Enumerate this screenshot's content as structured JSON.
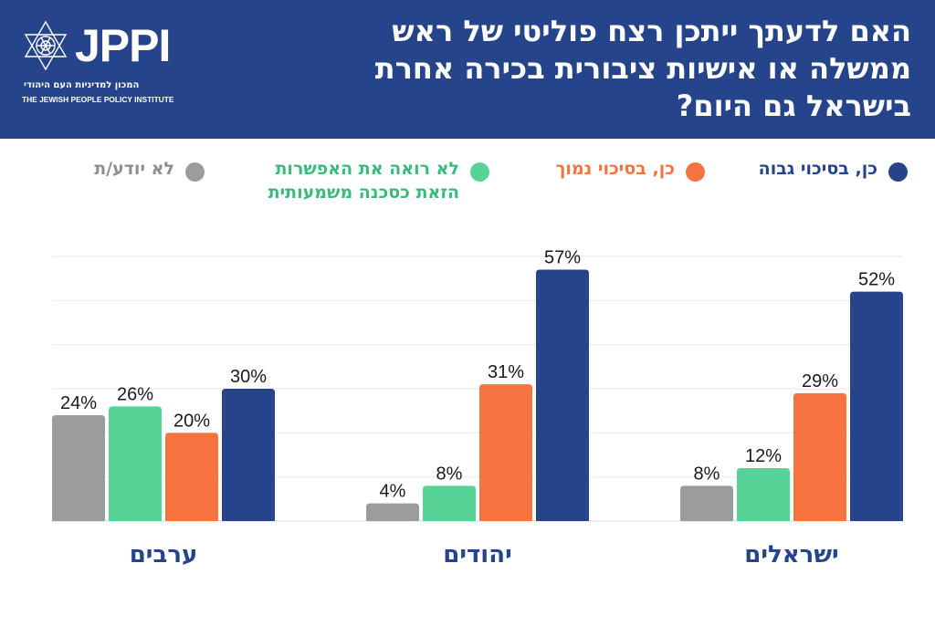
{
  "header": {
    "logo_mark": "JPPI",
    "logo_hebrew": "המכון למדיניות העם היהודי",
    "logo_english": "THE JEWISH PEOPLE POLICY INSTITUTE",
    "title_lines": [
      "האם לדעתך ייתכן רצח פוליטי של ראש",
      "ממשלה או אישיות ציבורית בכירה אחרת",
      "בישראל גם היום?"
    ]
  },
  "chart_data": {
    "type": "bar",
    "title": "האם לדעתך ייתכן רצח פוליטי של ראש ממשלה או אישיות ציבורית בכירה אחרת בישראל גם היום?",
    "xlabel": "",
    "ylabel": "",
    "ylim": [
      0,
      60
    ],
    "grid": true,
    "legend_position": "top",
    "categories": [
      "ערבים",
      "יהודים",
      "ישראלים"
    ],
    "series": [
      {
        "name": "לא יודע/ת",
        "color": "#9b9c9e",
        "values": [
          24,
          4,
          8
        ]
      },
      {
        "name": "לא רואה את האפשרות הזאת כסכנה משמעותית",
        "color": "#57d398",
        "values": [
          26,
          8,
          12
        ]
      },
      {
        "name": "כן, בסיכוי נמוך",
        "color": "#f77340",
        "values": [
          20,
          31,
          29
        ]
      },
      {
        "name": "כן, בסיכוי גבוה",
        "color": "#25448a",
        "values": [
          30,
          57,
          52
        ]
      }
    ],
    "value_suffix": "%"
  },
  "legend": [
    {
      "label_lines": [
        "כן, בסיכוי גבוה"
      ],
      "color": "#25448a",
      "text_color": "#25448a"
    },
    {
      "label_lines": [
        "כן, בסיכוי נמוך"
      ],
      "color": "#f77340",
      "text_color": "#f77340"
    },
    {
      "label_lines": [
        "לא רואה את האפשרות",
        "הזאת כסכנה משמעותית"
      ],
      "color": "#57d398",
      "text_color": "#3cb97c"
    },
    {
      "label_lines": [
        "לא יודע/ת"
      ],
      "color": "#9b9c9e",
      "text_color": "#8e8f91"
    }
  ]
}
